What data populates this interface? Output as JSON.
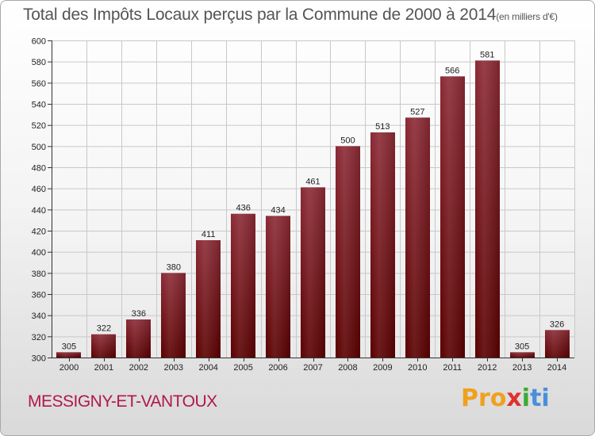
{
  "title": {
    "main": "Total des Impôts Locaux perçus par la Commune de 2000 à 2014",
    "unit": "(en milliers d'€)"
  },
  "commune": "MESSIGNY-ET-VANTOUX",
  "logo": {
    "letters": [
      "Pro",
      "x",
      "i",
      "ti"
    ],
    "text": "Proxiti"
  },
  "colors": {
    "bar_top": "#8b2a35",
    "bar_bottom": "#5a0000",
    "commune": "#b0174e"
  },
  "chart_data": {
    "type": "bar",
    "title": "Total des Impôts Locaux perçus par la Commune de 2000 à 2014",
    "ylabel": "en milliers d'€",
    "xlabel": "",
    "categories": [
      "2000",
      "2001",
      "2002",
      "2003",
      "2004",
      "2005",
      "2006",
      "2007",
      "2008",
      "2009",
      "2010",
      "2011",
      "2012",
      "2013",
      "2014"
    ],
    "values": [
      305,
      322,
      336,
      380,
      411,
      436,
      434,
      461,
      500,
      513,
      527,
      566,
      581,
      305,
      326
    ],
    "ylim": [
      300,
      600
    ],
    "yticks": [
      300,
      320,
      340,
      360,
      380,
      400,
      420,
      440,
      460,
      480,
      500,
      520,
      540,
      560,
      580,
      600
    ],
    "grid": true
  }
}
